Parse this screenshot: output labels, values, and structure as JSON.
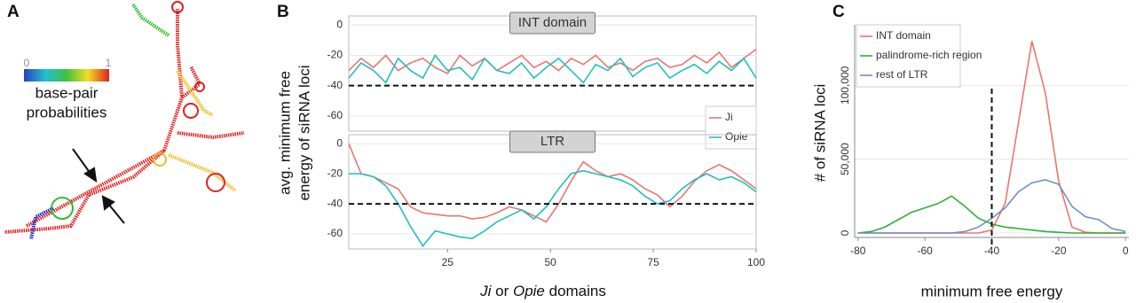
{
  "panel_a": {
    "label": "A",
    "scale_min": 0,
    "scale_max": 1,
    "legend_title": [
      "base-pair",
      "probabilities"
    ]
  },
  "panel_b": {
    "label": "B",
    "y_label": [
      "avg. minimum free",
      "energy of siRNA loci"
    ],
    "x_label": [
      "Ji",
      " or ",
      "Opie",
      " domains"
    ]
  },
  "chart_data": [
    {
      "type": "line",
      "title": "INT domain",
      "x": [
        1,
        4,
        7,
        10,
        13,
        16,
        19,
        22,
        25,
        28,
        31,
        34,
        37,
        40,
        43,
        46,
        49,
        52,
        55,
        58,
        61,
        64,
        67,
        70,
        73,
        76,
        79,
        82,
        85,
        88,
        91,
        94,
        97,
        100
      ],
      "series": [
        {
          "name": "Ji",
          "color": "#e8766f",
          "values": [
            -30,
            -22,
            -28,
            -20,
            -30,
            -25,
            -22,
            -28,
            -32,
            -20,
            -27,
            -22,
            -30,
            -25,
            -20,
            -28,
            -24,
            -30,
            -22,
            -26,
            -20,
            -28,
            -25,
            -30,
            -24,
            -22,
            -28,
            -26,
            -20,
            -25,
            -18,
            -28,
            -22,
            -16
          ]
        },
        {
          "name": "Opie",
          "color": "#1fbfbf",
          "values": [
            -35,
            -25,
            -30,
            -38,
            -22,
            -30,
            -35,
            -20,
            -30,
            -28,
            -36,
            -22,
            -30,
            -32,
            -25,
            -35,
            -28,
            -22,
            -30,
            -38,
            -26,
            -30,
            -22,
            -34,
            -28,
            -25,
            -35,
            -30,
            -26,
            -32,
            -24,
            -30,
            -22,
            -35
          ]
        }
      ],
      "xlim": [
        1,
        100
      ],
      "ylim": [
        -70,
        6
      ],
      "yticks": [
        0,
        -20,
        -40,
        -60
      ],
      "hline": -40,
      "grid": true,
      "legend": "bottom-right"
    },
    {
      "type": "line",
      "title": "LTR",
      "x": [
        1,
        4,
        7,
        10,
        13,
        16,
        19,
        22,
        25,
        28,
        31,
        34,
        37,
        40,
        43,
        46,
        49,
        52,
        55,
        58,
        61,
        64,
        67,
        70,
        73,
        76,
        79,
        82,
        85,
        88,
        91,
        94,
        97,
        100
      ],
      "series": [
        {
          "color": "#e8766f",
          "values": [
            0,
            -20,
            -22,
            -26,
            -30,
            -42,
            -46,
            -47,
            -48,
            -48,
            -50,
            -49,
            -46,
            -42,
            -44,
            -48,
            -52,
            -40,
            -25,
            -12,
            -18,
            -22,
            -20,
            -24,
            -30,
            -34,
            -42,
            -35,
            -25,
            -18,
            -14,
            -18,
            -24,
            -30
          ]
        },
        {
          "color": "#1fbfbf",
          "values": [
            -20,
            -20,
            -22,
            -28,
            -40,
            -55,
            -68,
            -58,
            -60,
            -62,
            -63,
            -58,
            -52,
            -48,
            -44,
            -50,
            -42,
            -30,
            -20,
            -18,
            -20,
            -22,
            -24,
            -28,
            -35,
            -40,
            -38,
            -30,
            -24,
            -20,
            -24,
            -22,
            -26,
            -32
          ]
        }
      ],
      "xlim": [
        1,
        100
      ],
      "ylim": [
        -70,
        6
      ],
      "yticks": [
        0,
        -20,
        -40,
        -60
      ],
      "xticks": [
        25,
        50,
        75,
        100
      ],
      "hline": -40,
      "grid": true
    },
    {
      "type": "line",
      "panel_label": "C",
      "x_label": "minimum free energy",
      "y_label": "# of siRNA loci",
      "x": [
        -80,
        -76,
        -72,
        -68,
        -64,
        -60,
        -56,
        -52,
        -48,
        -44,
        -40,
        -36,
        -32,
        -28,
        -24,
        -20,
        -16,
        -12,
        -8,
        -4,
        0
      ],
      "series": [
        {
          "name": "INT domain",
          "color": "#e8766f",
          "values": [
            0,
            0,
            0,
            0,
            0,
            0,
            0,
            0,
            0,
            0,
            2000,
            20000,
            75000,
            130000,
            95000,
            35000,
            4000,
            500,
            0,
            0,
            0
          ]
        },
        {
          "name": "palindrome-rich region",
          "color": "#2db034",
          "values": [
            0,
            1000,
            4000,
            9000,
            14000,
            17000,
            20000,
            25000,
            18000,
            10000,
            6000,
            4000,
            3000,
            2000,
            1000,
            500,
            0,
            0,
            0,
            0,
            0
          ]
        },
        {
          "name": "rest of LTR",
          "color": "#6d8fc9",
          "values": [
            0,
            0,
            0,
            0,
            0,
            0,
            0,
            0,
            1000,
            4000,
            10000,
            17000,
            28000,
            34000,
            36000,
            33000,
            18000,
            11000,
            9000,
            3000,
            1000
          ]
        }
      ],
      "xlim": [
        -81,
        1
      ],
      "ylim": [
        -3000,
        141000
      ],
      "xticks": [
        -80,
        -60,
        -40,
        -20,
        0
      ],
      "yticks": [
        0,
        {
          "value": 50000,
          "label": "50,000"
        },
        {
          "value": 100000,
          "label": "100,000"
        }
      ],
      "vline": -40,
      "grid": true,
      "legend": "top-left"
    }
  ]
}
